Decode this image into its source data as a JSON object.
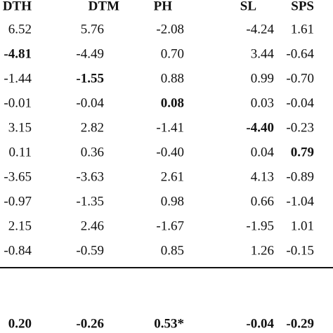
{
  "table": {
    "header": [
      "DTH",
      "DTM",
      "PH",
      "SL",
      "SPS"
    ],
    "rows": [
      [
        "6.52",
        "5.76",
        "-2.08",
        "-4.24",
        "1.61"
      ],
      [
        "-4.81",
        "-4.49",
        "0.70",
        "3.44",
        "-0.64"
      ],
      [
        "-1.44",
        "-1.55",
        "0.88",
        "0.99",
        "-0.70"
      ],
      [
        "-0.01",
        "-0.04",
        "0.08",
        "0.03",
        "-0.04"
      ],
      [
        "3.15",
        "2.82",
        "-1.41",
        "-4.40",
        "-0.23"
      ],
      [
        "0.11",
        "0.36",
        "-0.40",
        "0.04",
        "0.79"
      ],
      [
        "-3.65",
        "-3.63",
        "2.61",
        "4.13",
        "-0.89"
      ],
      [
        "-0.97",
        "-1.35",
        "0.98",
        "0.66",
        "-1.04"
      ],
      [
        "2.15",
        "2.46",
        "-1.67",
        "-1.95",
        "1.01"
      ],
      [
        "-0.84",
        "-0.59",
        "0.85",
        "1.26",
        "-0.15"
      ]
    ],
    "bold_cells": [
      [
        1,
        0
      ],
      [
        2,
        1
      ],
      [
        3,
        2
      ],
      [
        4,
        3
      ],
      [
        5,
        4
      ]
    ],
    "footer": [
      "0.20",
      "-0.26",
      "0.53*",
      "-0.04",
      "-0.29"
    ]
  }
}
